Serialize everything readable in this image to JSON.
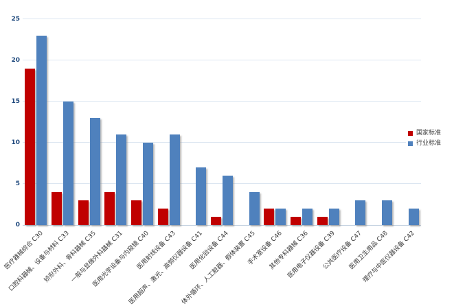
{
  "chart_data": {
    "type": "bar",
    "title": "",
    "xlabel": "",
    "ylabel": "",
    "categories": [
      "医疗器械综合 C30",
      "口腔科器械、设备与材料 C33",
      "矫形外科、骨科器械 C35",
      "一般与显微外科器械 C31",
      "医用光学设备与内窥镜 C40",
      "医用射线设备 C43",
      "医用超声、激光、高频仪器设备 C41",
      "医用化验设备 C44",
      "体外循环、人工脏器、假体装置 C45",
      "手术室设备 C46",
      "其他专科器械 C36",
      "医用电子仪器设备 C39",
      "公共医疗设备 C47",
      "医用卫生用品 C48",
      "理疗与中医仪器设备 C42"
    ],
    "series": [
      {
        "key": "national",
        "name": "国家标准",
        "color": "#c00000",
        "values": [
          19,
          4,
          3,
          4,
          3,
          2,
          0,
          1,
          0,
          2,
          1,
          1,
          0,
          0,
          0
        ]
      },
      {
        "key": "industry",
        "name": "行业标准",
        "color": "#4f81bd",
        "values": [
          23,
          15,
          13,
          11,
          10,
          11,
          7,
          6,
          4,
          2,
          2,
          2,
          3,
          3,
          2
        ]
      }
    ],
    "ylim": [
      0,
      25
    ],
    "yticks": [
      0,
      5,
      10,
      15,
      20,
      25
    ],
    "grid": "horizontal",
    "legend_position": "middle-right"
  },
  "colors": {
    "axis_text": "#1f497d",
    "category_text": "#3a3a3a",
    "gridline": "#dce6f1",
    "axis_line": "#c3d1e0",
    "background": "#ffffff"
  }
}
